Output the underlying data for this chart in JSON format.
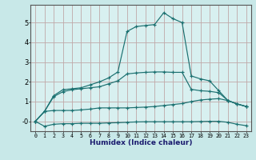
{
  "xlabel": "Humidex (Indice chaleur)",
  "background_color": "#c8e8e8",
  "plot_bg_color": "#d8f0f0",
  "grid_color": "#c0a8a8",
  "line_color": "#1a7070",
  "x_values": [
    0,
    1,
    2,
    3,
    4,
    5,
    6,
    7,
    8,
    9,
    10,
    11,
    12,
    13,
    14,
    15,
    16,
    17,
    18,
    19,
    20,
    21,
    22,
    23
  ],
  "series": [
    [
      0.0,
      -0.25,
      -0.15,
      -0.12,
      -0.12,
      -0.1,
      -0.1,
      -0.1,
      -0.08,
      -0.07,
      -0.05,
      -0.03,
      -0.02,
      -0.02,
      -0.02,
      -0.02,
      -0.02,
      -0.02,
      -0.01,
      0.0,
      0.0,
      -0.05,
      -0.15,
      -0.22
    ],
    [
      0.0,
      0.5,
      0.55,
      0.55,
      0.55,
      0.58,
      0.62,
      0.68,
      0.68,
      0.68,
      0.68,
      0.7,
      0.72,
      0.75,
      0.8,
      0.85,
      0.9,
      1.0,
      1.08,
      1.12,
      1.15,
      1.05,
      0.88,
      0.75
    ],
    [
      0.0,
      0.5,
      1.25,
      1.5,
      1.6,
      1.65,
      1.7,
      1.75,
      1.9,
      2.05,
      2.4,
      2.45,
      2.48,
      2.5,
      2.5,
      2.48,
      2.48,
      1.62,
      1.55,
      1.52,
      1.45,
      1.05,
      0.88,
      0.75
    ],
    [
      0.0,
      0.5,
      1.3,
      1.6,
      1.65,
      1.7,
      1.85,
      2.0,
      2.2,
      2.5,
      4.55,
      4.8,
      4.85,
      4.9,
      5.5,
      5.2,
      5.0,
      2.3,
      2.15,
      2.05,
      1.55,
      1.05,
      0.88,
      0.75
    ]
  ],
  "ylim": [
    -0.5,
    5.9
  ],
  "xlim": [
    -0.5,
    23.5
  ],
  "ytick_vals": [
    0,
    1,
    2,
    3,
    4,
    5
  ],
  "ytick_labels": [
    "-0",
    "1",
    "2",
    "3",
    "4",
    "5"
  ],
  "xtick_labels": [
    "0",
    "1",
    "2",
    "3",
    "4",
    "5",
    "6",
    "7",
    "8",
    "9",
    "10",
    "11",
    "12",
    "13",
    "14",
    "15",
    "16",
    "17",
    "18",
    "19",
    "20",
    "21",
    "22",
    "23"
  ]
}
